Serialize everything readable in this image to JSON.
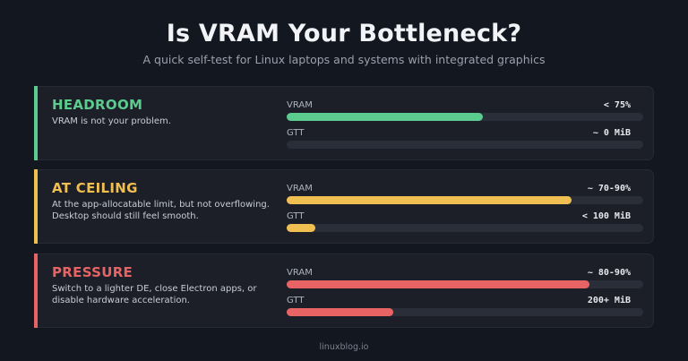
{
  "header": {
    "title": "Is VRAM Your Bottleneck?",
    "subtitle": "A quick self-test for Linux laptops and systems with integrated graphics"
  },
  "cards": [
    {
      "state": "HEADROOM",
      "color": "#5ccb8e",
      "description": "VRAM is not your problem.",
      "meters": [
        {
          "label": "VRAM",
          "value": "< 75%",
          "fill_pct": 55
        },
        {
          "label": "GTT",
          "value": "~ 0 MiB",
          "fill_pct": 0
        }
      ]
    },
    {
      "state": "AT CEILING",
      "color": "#f0bf52",
      "description": "At the app-allocatable limit, but not overflowing. Desktop should still feel smooth.",
      "meters": [
        {
          "label": "VRAM",
          "value": "~ 70-90%",
          "fill_pct": 80
        },
        {
          "label": "GTT",
          "value": "< 100 MiB",
          "fill_pct": 8
        }
      ]
    },
    {
      "state": "PRESSURE",
      "color": "#e86464",
      "description": "Switch to a lighter DE, close Electron apps, or disable hardware acceleration.",
      "meters": [
        {
          "label": "VRAM",
          "value": "~ 80-90%",
          "fill_pct": 85
        },
        {
          "label": "GTT",
          "value": "200+ MiB",
          "fill_pct": 30
        }
      ]
    }
  ],
  "footer": {
    "text": "linuxblog.io"
  }
}
